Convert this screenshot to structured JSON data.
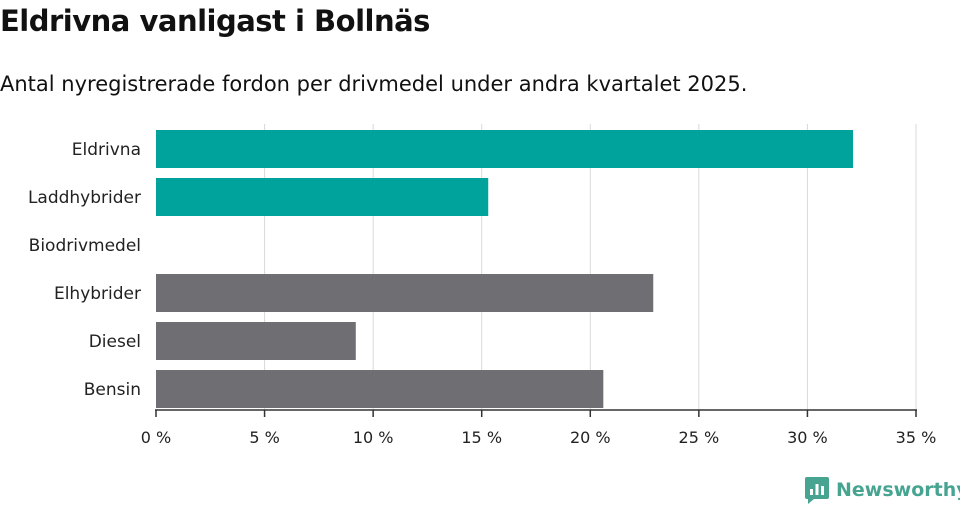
{
  "header": {
    "title": "Eldrivna vanligast i Bollnäs",
    "subtitle": "Antal nyregistrerade fordon per drivmedel under andra kvartalet 2025."
  },
  "brand": {
    "name": "Newsworthy",
    "color": "#46a491"
  },
  "colors": {
    "highlight": "#00a39b",
    "default": "#6e6e73",
    "grid": "#d9d9d9",
    "axis": "#333333"
  },
  "chart_data": {
    "type": "bar",
    "orientation": "horizontal",
    "categories": [
      "Eldrivna",
      "Laddhybrider",
      "Biodrivmedel",
      "Elhybrider",
      "Diesel",
      "Bensin"
    ],
    "values": [
      32.1,
      15.3,
      0,
      22.9,
      9.2,
      20.6
    ],
    "highlighted": [
      true,
      true,
      true,
      false,
      false,
      false
    ],
    "xlim": [
      0,
      35
    ],
    "xticks": [
      0,
      5,
      10,
      15,
      20,
      25,
      30,
      35
    ],
    "tick_suffix": " %",
    "grid": true
  }
}
